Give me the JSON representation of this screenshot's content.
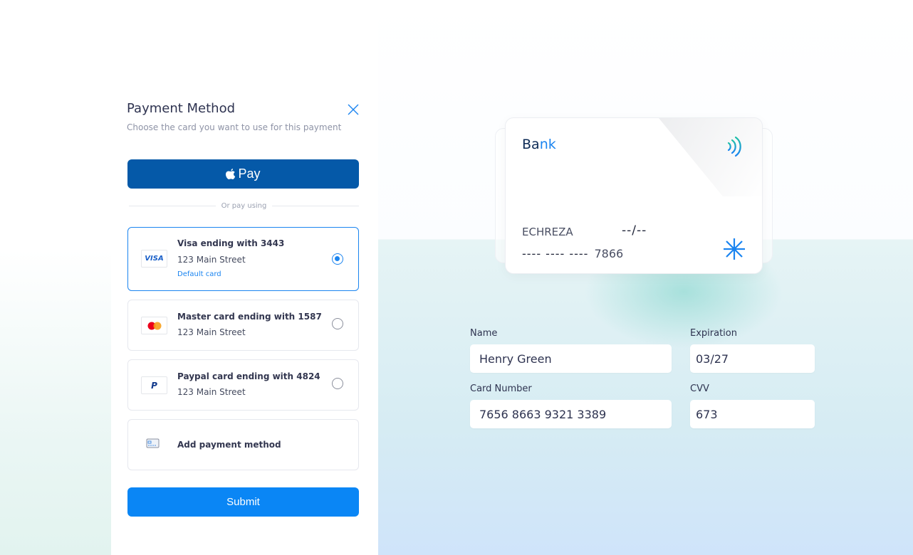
{
  "panel": {
    "title": "Payment Method",
    "subtitle": "Choose the card you want to use for this payment",
    "apple_pay_label": "Pay",
    "divider": "Or pay using",
    "submit": "Submit",
    "options": [
      {
        "title": "Visa ending with 3443",
        "address": "123 Main Street",
        "badge": "Default card",
        "logo": "VISA",
        "selected": true
      },
      {
        "title": "Master card ending with 1587",
        "address": "123 Main Street",
        "logo": "mastercard-icon",
        "selected": false
      },
      {
        "title": "Paypal card ending with 4824",
        "address": "123 Main Street",
        "logo": "paypal-icon",
        "selected": false
      }
    ],
    "add_method": "Add payment method"
  },
  "card": {
    "bank_a": "Ba",
    "bank_b": "nk",
    "holder": "ECHREZA",
    "expiry": "--/--",
    "masked": "---- ---- ----",
    "last4": "7866"
  },
  "form": {
    "name_label": "Name",
    "name": "Henry Green",
    "exp_label": "Expiration",
    "exp": "03/27",
    "number_label": "Card Number",
    "number": "7656 8663 9321 3389",
    "cvv_label": "CVV",
    "cvv": "673"
  },
  "colors": {
    "accent": "#0a86f5",
    "apple_pay": "#0559a8"
  }
}
